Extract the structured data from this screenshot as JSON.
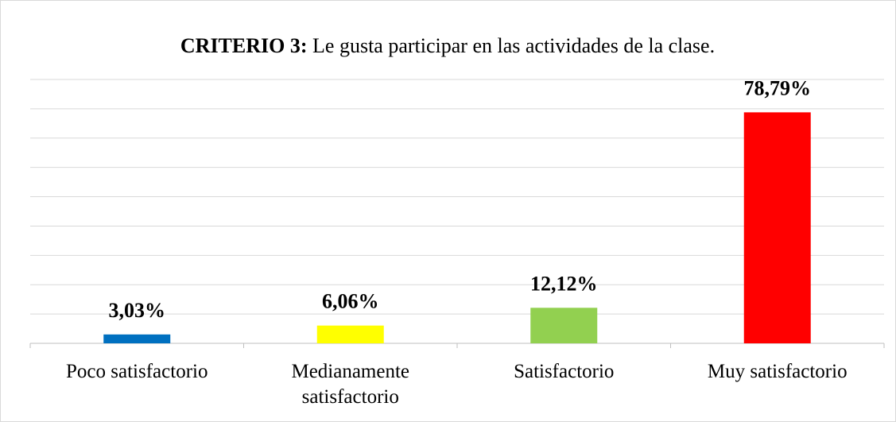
{
  "chart_data": {
    "type": "bar",
    "title": [
      "CRITERIO 3:",
      "Le gusta participar en las actividades de la clase."
    ],
    "categories": [
      "Poco satisfactorio",
      "Medianamente satisfactorio",
      "Satisfactorio",
      "Muy satisfactorio"
    ],
    "values": [
      3.03,
      6.06,
      12.12,
      78.79
    ],
    "value_labels": [
      "3,03%",
      "6,06%",
      "12,12%",
      "78,79%"
    ],
    "colors": [
      "#0070c0",
      "#ffff00",
      "#92d050",
      "#ff0000"
    ],
    "ylim": [
      0,
      90
    ],
    "yticks": [
      0,
      10,
      20,
      30,
      40,
      50,
      60,
      70,
      80,
      90
    ],
    "grid": true
  }
}
